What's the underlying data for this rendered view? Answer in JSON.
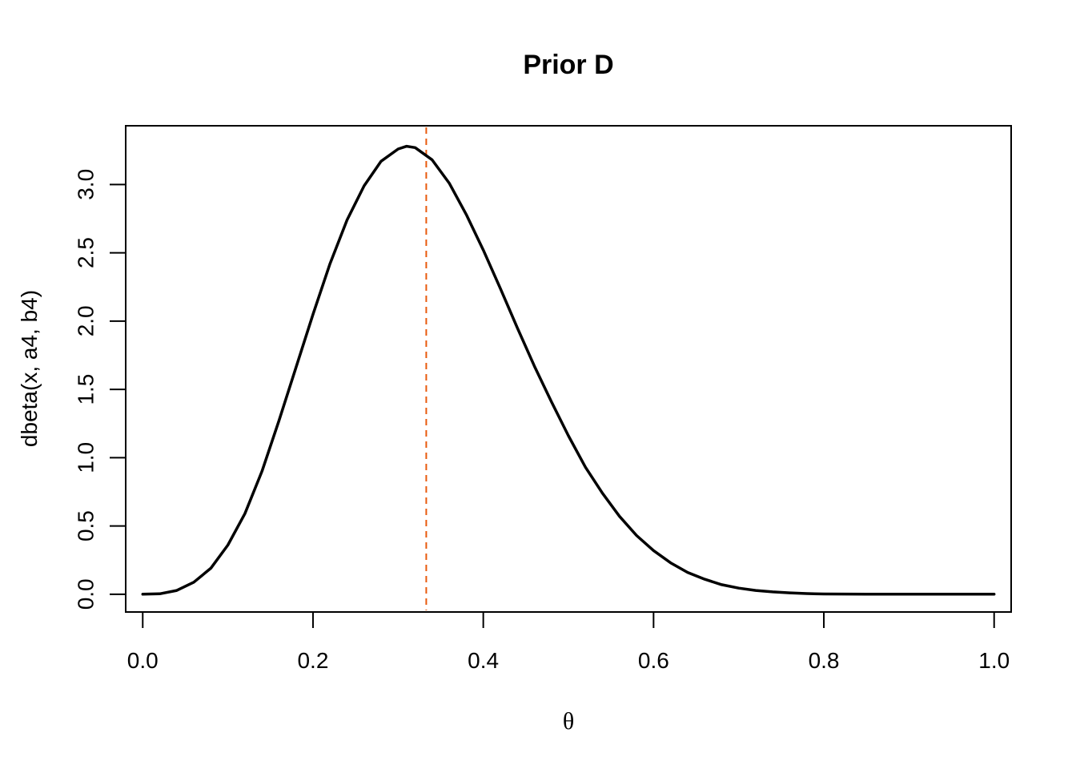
{
  "chart_data": {
    "type": "line",
    "title": "Prior D",
    "xlabel": "θ",
    "ylabel": "dbeta(x, a4, b4)",
    "xlim": [
      -0.02,
      1.02
    ],
    "ylim": [
      -0.13,
      3.43
    ],
    "x_ticks": [
      0.0,
      0.2,
      0.4,
      0.6,
      0.8,
      1.0
    ],
    "x_tick_labels": [
      "0.0",
      "0.2",
      "0.4",
      "0.6",
      "0.8",
      "1.0"
    ],
    "y_ticks": [
      0.0,
      0.5,
      1.0,
      1.5,
      2.0,
      2.5,
      3.0
    ],
    "y_tick_labels": [
      "0.0",
      "0.5",
      "1.0",
      "1.5",
      "2.0",
      "2.5",
      "3.0"
    ],
    "grid": false,
    "series": [
      {
        "color": "#000000",
        "x": [
          0.0,
          0.02,
          0.04,
          0.06,
          0.08,
          0.1,
          0.12,
          0.14,
          0.16,
          0.18,
          0.2,
          0.22,
          0.24,
          0.26,
          0.28,
          0.3,
          0.31,
          0.32,
          0.34,
          0.36,
          0.38,
          0.4,
          0.42,
          0.44,
          0.46,
          0.48,
          0.5,
          0.52,
          0.54,
          0.56,
          0.58,
          0.6,
          0.62,
          0.64,
          0.66,
          0.68,
          0.7,
          0.72,
          0.74,
          0.76,
          0.78,
          0.8,
          0.85,
          0.9,
          0.95,
          1.0
        ],
        "y": [
          0.0,
          0.003,
          0.028,
          0.088,
          0.19,
          0.36,
          0.59,
          0.9,
          1.27,
          1.66,
          2.05,
          2.42,
          2.74,
          2.99,
          3.17,
          3.26,
          3.28,
          3.27,
          3.18,
          3.01,
          2.78,
          2.52,
          2.24,
          1.95,
          1.67,
          1.41,
          1.16,
          0.93,
          0.74,
          0.57,
          0.43,
          0.32,
          0.23,
          0.16,
          0.11,
          0.07,
          0.045,
          0.028,
          0.017,
          0.01,
          0.005,
          0.002,
          0.0005,
          0.0001,
          0.0,
          0.0
        ]
      }
    ],
    "reference_line": {
      "orientation": "vertical",
      "x": 0.333,
      "color": "#e8590c",
      "style": "dashed"
    }
  }
}
